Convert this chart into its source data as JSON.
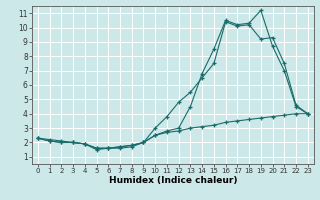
{
  "xlabel": "Humidex (Indice chaleur)",
  "bg_color": "#cce8e8",
  "grid_color": "#ffffff",
  "line_color": "#1a6b6b",
  "xlim": [
    -0.5,
    23.5
  ],
  "ylim": [
    0.5,
    11.5
  ],
  "xticks": [
    0,
    1,
    2,
    3,
    4,
    5,
    6,
    7,
    8,
    9,
    10,
    11,
    12,
    13,
    14,
    15,
    16,
    17,
    18,
    19,
    20,
    21,
    22,
    23
  ],
  "yticks": [
    1,
    2,
    3,
    4,
    5,
    6,
    7,
    8,
    9,
    10,
    11
  ],
  "line1_x": [
    0,
    1,
    2,
    3,
    4,
    5,
    6,
    7,
    8,
    9,
    10,
    11,
    12,
    13,
    14,
    15,
    16,
    17,
    18,
    19,
    20,
    21,
    22,
    23
  ],
  "line1_y": [
    2.3,
    2.2,
    2.1,
    2.0,
    1.9,
    1.5,
    1.6,
    1.6,
    1.7,
    2.0,
    2.5,
    2.7,
    2.8,
    3.0,
    3.1,
    3.2,
    3.4,
    3.5,
    3.6,
    3.7,
    3.8,
    3.9,
    4.0,
    4.0
  ],
  "line2_x": [
    0,
    1,
    2,
    3,
    4,
    5,
    6,
    7,
    8,
    9,
    10,
    11,
    12,
    13,
    14,
    15,
    16,
    17,
    18,
    19,
    20,
    21,
    22,
    23
  ],
  "line2_y": [
    2.3,
    2.1,
    2.0,
    2.0,
    1.9,
    1.6,
    1.6,
    1.7,
    1.8,
    2.0,
    3.0,
    3.8,
    4.8,
    5.5,
    6.5,
    7.5,
    10.4,
    10.1,
    10.2,
    9.2,
    9.3,
    7.5,
    4.6,
    4.0
  ],
  "line3_x": [
    0,
    1,
    2,
    3,
    4,
    5,
    6,
    7,
    8,
    9,
    10,
    11,
    12,
    13,
    14,
    15,
    16,
    17,
    18,
    19,
    20,
    21,
    22,
    23
  ],
  "line3_y": [
    2.3,
    2.1,
    2.0,
    2.0,
    1.9,
    1.6,
    1.6,
    1.7,
    1.8,
    2.0,
    2.5,
    2.8,
    3.0,
    4.5,
    6.8,
    8.5,
    10.5,
    10.2,
    10.3,
    11.2,
    8.7,
    7.0,
    4.5,
    4.0
  ]
}
